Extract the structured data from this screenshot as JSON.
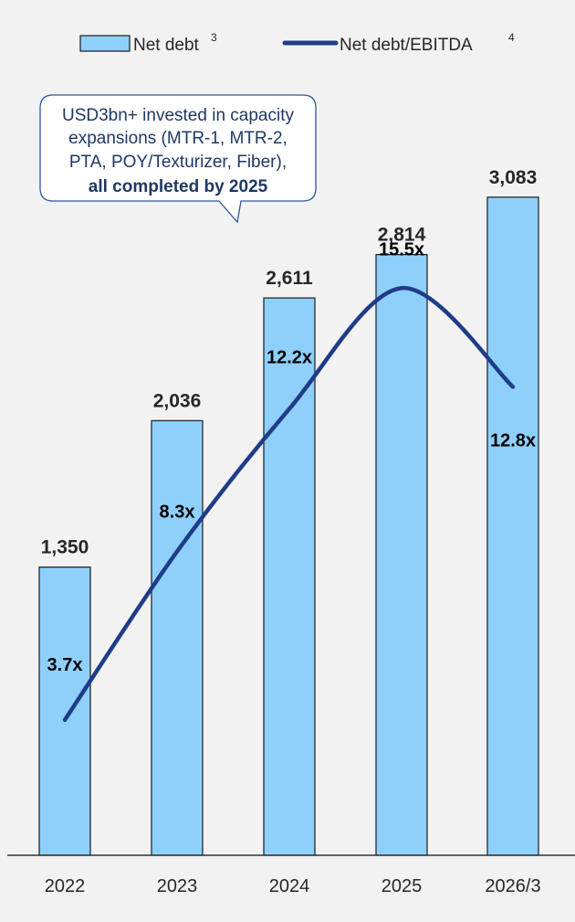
{
  "colors": {
    "bar_fill": "#8fd0fb",
    "bar_stroke": "#1a1a1a",
    "line": "#1f3c88",
    "callout_text": "#1f3864",
    "callout_border": "#2f5597",
    "background": "#f2f2f2"
  },
  "legend": {
    "bar_label": "Net debt",
    "bar_sup": "3",
    "line_label": "Net debt/EBITDA",
    "line_sup": "4",
    "placement": "top-center"
  },
  "callout": {
    "line1": "USD3bn+ invested in capacity",
    "line2": "expansions (MTR-1, MTR-2,",
    "line3": "PTA, POY/Texturizer, Fiber),",
    "line4": "all completed by 2025"
  },
  "chart_data": {
    "type": "bar",
    "categories": [
      "2022",
      "2023",
      "2024",
      "2025",
      "2026/3"
    ],
    "series": [
      {
        "name": "Net debt",
        "type": "bar",
        "values": [
          1350,
          2036,
          2611,
          2814,
          3083
        ],
        "labels": [
          "1,350",
          "2,036",
          "2,611",
          "2,814",
          "3,083"
        ]
      },
      {
        "name": "Net debt/EBITDA",
        "type": "line",
        "values": [
          3.7,
          8.3,
          12.2,
          15.5,
          12.8
        ],
        "labels": [
          "3.7x",
          "8.3x",
          "12.2x",
          "15.5x",
          "12.8x"
        ]
      }
    ],
    "ylim": [
      0,
      3600
    ],
    "y2lim": [
      0,
      21
    ],
    "grid": false,
    "smooth_line": true
  }
}
